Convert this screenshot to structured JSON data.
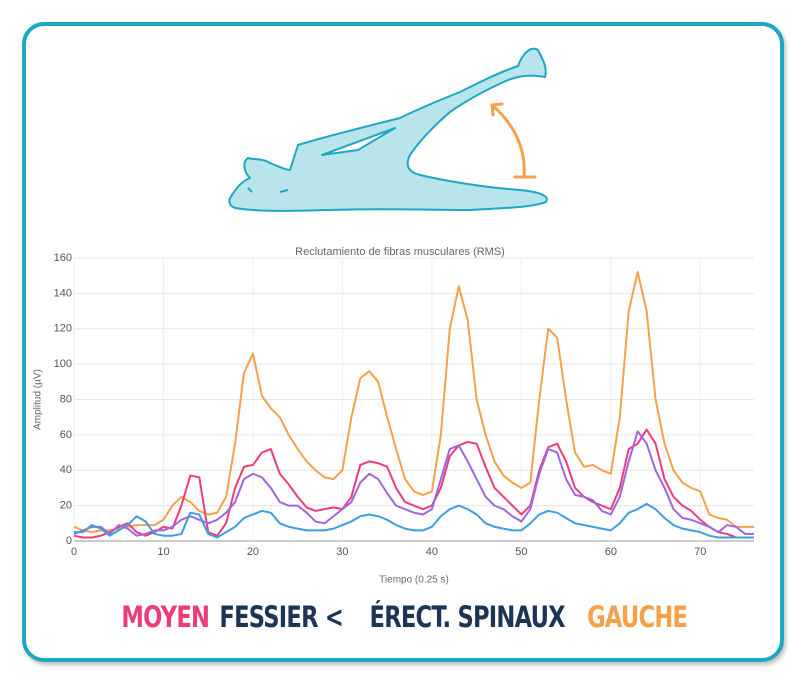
{
  "chart_data": {
    "type": "line",
    "title": "Reclutamiento de fibras musculares (RMS)",
    "x_label": "Tiempo (0.25 s)",
    "y_label": "Amplitud (µV)",
    "x": [
      0,
      1,
      2,
      3,
      4,
      5,
      6,
      7,
      8,
      9,
      10,
      11,
      12,
      13,
      14,
      15,
      16,
      17,
      18,
      19,
      20,
      21,
      22,
      23,
      24,
      25,
      26,
      27,
      28,
      29,
      30,
      31,
      32,
      33,
      34,
      35,
      36,
      37,
      38,
      39,
      40,
      41,
      42,
      43,
      44,
      45,
      46,
      47,
      48,
      49,
      50,
      51,
      52,
      53,
      54,
      55,
      56,
      57,
      58,
      59,
      60,
      61,
      62,
      63,
      64,
      65,
      66,
      67,
      68,
      69,
      70,
      71,
      72,
      73,
      74,
      75,
      76
    ],
    "series": [
      {
        "color": "#f5a04a",
        "values": [
          8,
          6,
          5,
          6,
          6,
          7,
          8,
          9,
          9,
          9,
          12,
          20,
          25,
          22,
          17,
          15,
          16,
          25,
          55,
          95,
          106,
          82,
          75,
          70,
          60,
          52,
          45,
          40,
          36,
          35,
          40,
          70,
          92,
          96,
          90,
          70,
          52,
          35,
          28,
          26,
          28,
          60,
          120,
          144,
          125,
          80,
          60,
          45,
          37,
          33,
          30,
          33,
          80,
          120,
          115,
          80,
          50,
          42,
          43,
          40,
          38,
          70,
          130,
          152,
          130,
          80,
          55,
          40,
          33,
          30,
          28,
          15,
          13,
          12,
          8,
          8,
          8
        ]
      },
      {
        "color": "#ec3c7a",
        "values": [
          3,
          2,
          2,
          3,
          5,
          8,
          10,
          5,
          3,
          5,
          8,
          7,
          20,
          37,
          36,
          5,
          3,
          10,
          30,
          42,
          43,
          50,
          52,
          38,
          32,
          25,
          19,
          17,
          18,
          19,
          18,
          25,
          43,
          45,
          44,
          42,
          30,
          22,
          20,
          18,
          20,
          30,
          48,
          54,
          56,
          55,
          42,
          30,
          25,
          20,
          15,
          20,
          40,
          53,
          55,
          45,
          30,
          25,
          22,
          20,
          18,
          30,
          52,
          55,
          63,
          55,
          35,
          25,
          20,
          17,
          12,
          8,
          5,
          4,
          2,
          2,
          2
        ]
      },
      {
        "color": "#a066e0",
        "values": [
          4,
          6,
          8,
          8,
          4,
          9,
          7,
          3,
          4,
          6,
          6,
          8,
          12,
          14,
          12,
          10,
          12,
          16,
          22,
          35,
          38,
          36,
          30,
          22,
          20,
          20,
          16,
          11,
          10,
          14,
          18,
          22,
          33,
          38,
          35,
          27,
          20,
          18,
          16,
          15,
          18,
          35,
          52,
          54,
          45,
          35,
          25,
          20,
          18,
          14,
          11,
          18,
          38,
          52,
          50,
          35,
          26,
          25,
          23,
          17,
          15,
          25,
          45,
          62,
          55,
          40,
          30,
          18,
          13,
          12,
          10,
          8,
          5,
          9,
          8,
          4,
          4
        ]
      },
      {
        "color": "#3d9ee0",
        "values": [
          5,
          5,
          9,
          7,
          3,
          6,
          9,
          14,
          11,
          4,
          3,
          3,
          4,
          16,
          15,
          4,
          2,
          5,
          8,
          13,
          15,
          17,
          16,
          10,
          8,
          7,
          6,
          6,
          6,
          7,
          9,
          11,
          14,
          15,
          14,
          12,
          9,
          7,
          6,
          6,
          8,
          14,
          18,
          20,
          18,
          15,
          10,
          8,
          7,
          6,
          6,
          10,
          15,
          17,
          16,
          13,
          10,
          9,
          8,
          7,
          6,
          10,
          16,
          18,
          21,
          18,
          13,
          9,
          7,
          6,
          5,
          3,
          2,
          2,
          2,
          2,
          2
        ]
      }
    ],
    "xlim": [
      0,
      76
    ],
    "ylim": [
      0,
      160
    ],
    "xticks": [
      0,
      10,
      20,
      30,
      40,
      50,
      60,
      70
    ],
    "yticks": [
      0,
      20,
      40,
      60,
      80,
      100,
      120,
      140,
      160
    ],
    "grid": true
  },
  "caption": [
    {
      "text": "MOYEN",
      "color": "#ec3c7a"
    },
    {
      "text": "FESSIER <",
      "color": "#1c3557"
    },
    {
      "text": "ÉRECT. SPINAUX",
      "color": "#1c3557"
    },
    {
      "text": "GAUCHE",
      "color": "#f5a04a"
    }
  ]
}
